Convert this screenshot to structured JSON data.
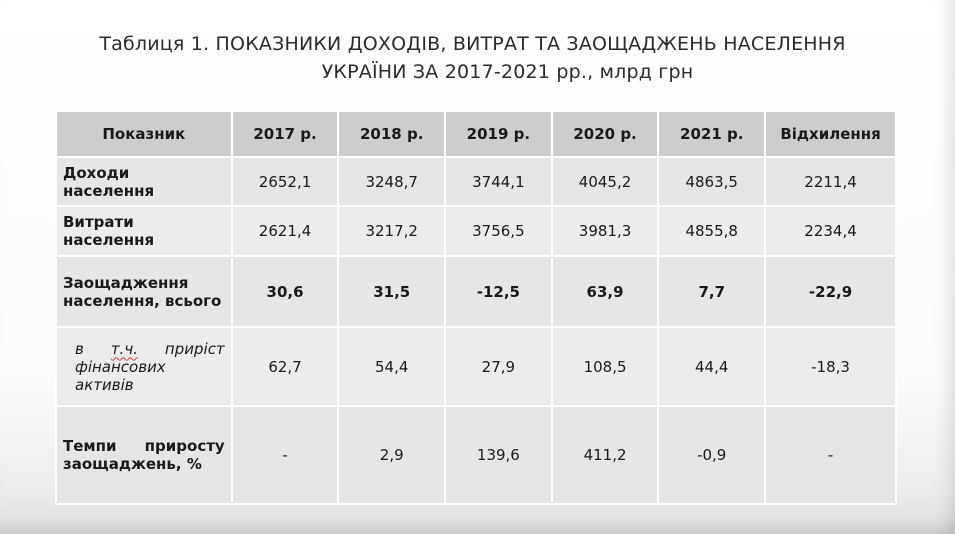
{
  "title": {
    "line1": "Таблиця 1. ПОКАЗНИКИ ДОХОДІВ, ВИТРАТ ТА ЗАОЩАДЖЕНЬ НАСЕЛЕННЯ",
    "line2": "УКРАЇНИ ЗА 2017-2021 рр., млрд грн"
  },
  "table": {
    "headers": [
      "Показник",
      "2017 р.",
      "2018 р.",
      "2019 р.",
      "2020 р.",
      "2021 р.",
      "Відхилення"
    ],
    "rows": [
      {
        "label": "Доходи населення",
        "values": [
          "2652,1",
          "3248,7",
          "3744,1",
          "4045,2",
          "4863,5",
          "2211,4"
        ]
      },
      {
        "label": "Витрати населення",
        "values": [
          "2621,4",
          "3217,2",
          "3756,5",
          "3981,3",
          "4855,8",
          "2234,4"
        ]
      },
      {
        "label": "Заощадження населення, всього",
        "values": [
          "30,6",
          "31,5",
          "-12,5",
          "63,9",
          "7,7",
          "-22,9"
        ]
      },
      {
        "label_prefix": "в",
        "label_abbr": "т.ч.",
        "label_rest": "приріст фінансових активів",
        "values": [
          "62,7",
          "54,4",
          "27,9",
          "108,5",
          "44,4",
          "-18,3"
        ]
      },
      {
        "label": "Темпи приросту заощаджень, %",
        "values": [
          "-",
          "2,9",
          "139,6",
          "411,2",
          "-0,9",
          "-"
        ]
      }
    ]
  }
}
